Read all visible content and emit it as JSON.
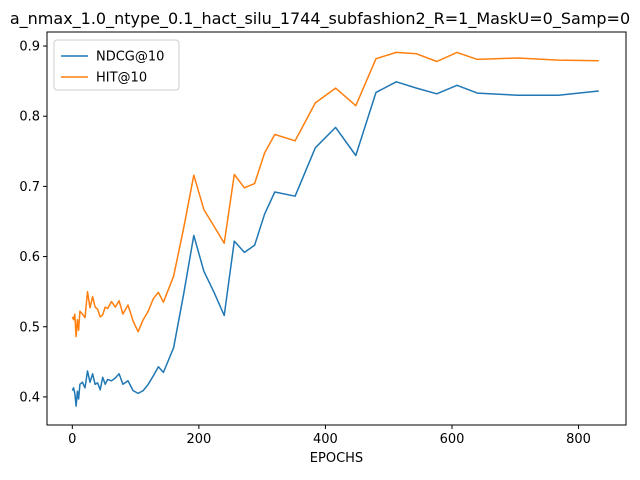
{
  "chart_data": {
    "type": "line",
    "title": "a_nmax_1.0_ntype_0.1_hact_silu_1744_subfashion2_R=1_MaskU=0_Samp=0",
    "xlabel": "EPOCHS",
    "ylabel": "",
    "xlim": [
      -40,
      875
    ],
    "ylim": [
      0.36,
      0.92
    ],
    "xticks": [
      0,
      200,
      400,
      600,
      800
    ],
    "yticks": [
      0.4,
      0.5,
      0.6,
      0.7,
      0.8,
      0.9
    ],
    "grid": false,
    "legend_position": "top-left",
    "series": [
      {
        "name": "NDCG@10",
        "color": "#1f77b4",
        "points": [
          [
            0,
            0.409
          ],
          [
            2,
            0.413
          ],
          [
            4,
            0.405
          ],
          [
            6,
            0.387
          ],
          [
            8,
            0.408
          ],
          [
            10,
            0.397
          ],
          [
            12,
            0.418
          ],
          [
            16,
            0.421
          ],
          [
            20,
            0.413
          ],
          [
            24,
            0.437
          ],
          [
            28,
            0.421
          ],
          [
            32,
            0.433
          ],
          [
            36,
            0.418
          ],
          [
            40,
            0.42
          ],
          [
            44,
            0.41
          ],
          [
            48,
            0.428
          ],
          [
            52,
            0.418
          ],
          [
            56,
            0.425
          ],
          [
            62,
            0.423
          ],
          [
            68,
            0.427
          ],
          [
            74,
            0.433
          ],
          [
            80,
            0.418
          ],
          [
            88,
            0.423
          ],
          [
            96,
            0.409
          ],
          [
            104,
            0.405
          ],
          [
            112,
            0.409
          ],
          [
            120,
            0.418
          ],
          [
            128,
            0.43
          ],
          [
            136,
            0.443
          ],
          [
            144,
            0.435
          ],
          [
            160,
            0.47
          ],
          [
            176,
            0.547
          ],
          [
            192,
            0.63
          ],
          [
            208,
            0.579
          ],
          [
            224,
            0.549
          ],
          [
            240,
            0.516
          ],
          [
            256,
            0.622
          ],
          [
            272,
            0.606
          ],
          [
            288,
            0.616
          ],
          [
            304,
            0.661
          ],
          [
            320,
            0.692
          ],
          [
            352,
            0.686
          ],
          [
            384,
            0.755
          ],
          [
            416,
            0.784
          ],
          [
            448,
            0.744
          ],
          [
            480,
            0.834
          ],
          [
            512,
            0.849
          ],
          [
            544,
            0.84
          ],
          [
            576,
            0.832
          ],
          [
            608,
            0.844
          ],
          [
            640,
            0.833
          ],
          [
            704,
            0.83
          ],
          [
            768,
            0.83
          ],
          [
            832,
            0.836
          ]
        ]
      },
      {
        "name": "HIT@10",
        "color": "#ff7f0e",
        "points": [
          [
            0,
            0.514
          ],
          [
            2,
            0.51
          ],
          [
            4,
            0.518
          ],
          [
            6,
            0.486
          ],
          [
            8,
            0.51
          ],
          [
            10,
            0.495
          ],
          [
            12,
            0.522
          ],
          [
            16,
            0.518
          ],
          [
            20,
            0.513
          ],
          [
            24,
            0.55
          ],
          [
            28,
            0.527
          ],
          [
            32,
            0.543
          ],
          [
            36,
            0.528
          ],
          [
            40,
            0.525
          ],
          [
            44,
            0.514
          ],
          [
            48,
            0.517
          ],
          [
            52,
            0.528
          ],
          [
            56,
            0.526
          ],
          [
            62,
            0.536
          ],
          [
            68,
            0.528
          ],
          [
            74,
            0.537
          ],
          [
            80,
            0.518
          ],
          [
            88,
            0.531
          ],
          [
            96,
            0.508
          ],
          [
            104,
            0.493
          ],
          [
            112,
            0.51
          ],
          [
            120,
            0.522
          ],
          [
            128,
            0.54
          ],
          [
            136,
            0.549
          ],
          [
            144,
            0.535
          ],
          [
            160,
            0.572
          ],
          [
            176,
            0.641
          ],
          [
            192,
            0.716
          ],
          [
            208,
            0.667
          ],
          [
            224,
            0.643
          ],
          [
            240,
            0.619
          ],
          [
            256,
            0.717
          ],
          [
            272,
            0.698
          ],
          [
            288,
            0.704
          ],
          [
            304,
            0.748
          ],
          [
            320,
            0.774
          ],
          [
            352,
            0.765
          ],
          [
            384,
            0.819
          ],
          [
            416,
            0.84
          ],
          [
            448,
            0.815
          ],
          [
            480,
            0.882
          ],
          [
            512,
            0.891
          ],
          [
            544,
            0.889
          ],
          [
            576,
            0.878
          ],
          [
            608,
            0.891
          ],
          [
            640,
            0.881
          ],
          [
            704,
            0.883
          ],
          [
            768,
            0.88
          ],
          [
            832,
            0.879
          ]
        ]
      }
    ]
  }
}
